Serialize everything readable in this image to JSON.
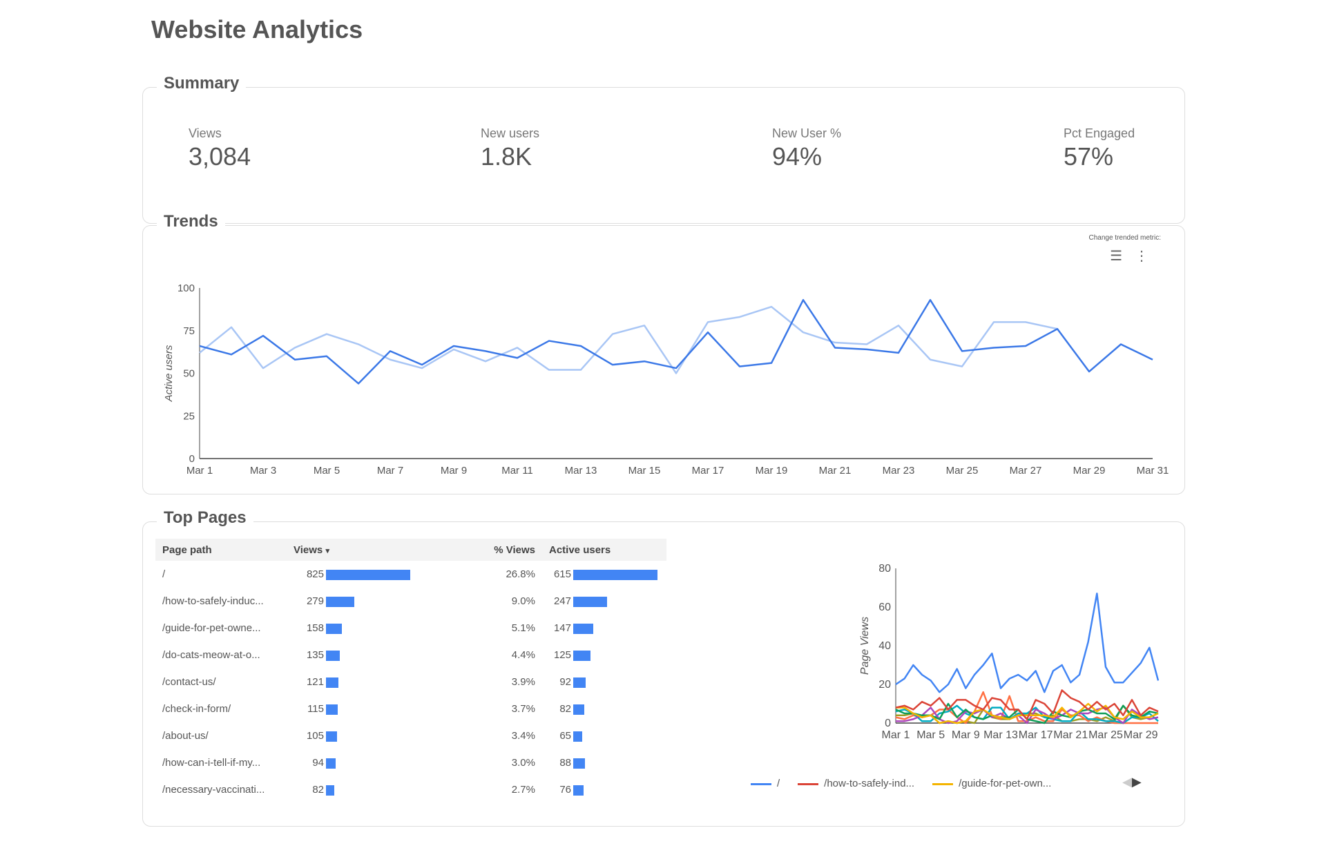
{
  "title": "Website Analytics",
  "summary": {
    "heading": "Summary",
    "kpis": [
      {
        "label": "Views",
        "value": "3,084"
      },
      {
        "label": "New users",
        "value": "1.8K"
      },
      {
        "label": "New User %",
        "value": "94%"
      },
      {
        "label": "Pct Engaged",
        "value": "57%"
      }
    ]
  },
  "trends": {
    "heading": "Trends",
    "control_label": "Change trended metric:",
    "icons": [
      "filter-icon",
      "more-vert-icon"
    ]
  },
  "top_pages": {
    "heading": "Top Pages",
    "columns": [
      "Page path",
      "Views",
      "% Views",
      "Active users"
    ],
    "sort_indicator": "▾",
    "rows": [
      {
        "path": "/",
        "views": 825,
        "pct": "26.8%",
        "users": 615
      },
      {
        "path": "/how-to-safely-induc...",
        "views": 279,
        "pct": "9.0%",
        "users": 247
      },
      {
        "path": "/guide-for-pet-owne...",
        "views": 158,
        "pct": "5.1%",
        "users": 147
      },
      {
        "path": "/do-cats-meow-at-o...",
        "views": 135,
        "pct": "4.4%",
        "users": 125
      },
      {
        "path": "/contact-us/",
        "views": 121,
        "pct": "3.9%",
        "users": 92
      },
      {
        "path": "/check-in-form/",
        "views": 115,
        "pct": "3.7%",
        "users": 82
      },
      {
        "path": "/about-us/",
        "views": 105,
        "pct": "3.4%",
        "users": 65
      },
      {
        "path": "/how-can-i-tell-if-my...",
        "views": 94,
        "pct": "3.0%",
        "users": 88
      },
      {
        "path": "/necessary-vaccinati...",
        "views": 82,
        "pct": "2.7%",
        "users": 76
      }
    ]
  },
  "chart_data": [
    {
      "type": "line",
      "ylabel": "Active users",
      "ylim": [
        0,
        100
      ],
      "yticks": [
        0,
        25,
        50,
        75,
        100
      ],
      "xticks": [
        "Mar 1",
        "Mar 3",
        "Mar 5",
        "Mar 7",
        "Mar 9",
        "Mar 11",
        "Mar 13",
        "Mar 15",
        "Mar 17",
        "Mar 19",
        "Mar 21",
        "Mar 23",
        "Mar 25",
        "Mar 27",
        "Mar 29",
        "Mar 31"
      ],
      "x_days": 31,
      "grid": false,
      "series": [
        {
          "color": "#3b78e7",
          "values": [
            66,
            61,
            72,
            58,
            60,
            44,
            63,
            55,
            66,
            63,
            59,
            69,
            66,
            55,
            57,
            53,
            74,
            54,
            56,
            93,
            65,
            64,
            62,
            93,
            63,
            65,
            66,
            76,
            51,
            67,
            58
          ]
        },
        {
          "color": "#a9c6f5",
          "values": [
            62,
            77,
            53,
            65,
            73,
            67,
            58,
            53,
            64,
            57,
            65,
            52,
            52,
            73,
            78,
            50,
            80,
            83,
            89,
            74,
            68,
            67,
            78,
            58,
            54,
            80,
            80,
            76
          ]
        }
      ]
    },
    {
      "type": "line",
      "ylabel": "Page Views",
      "ylim": [
        0,
        80
      ],
      "yticks": [
        0,
        20,
        40,
        60,
        80
      ],
      "xticks": [
        "Mar 1",
        "Mar 5",
        "Mar 9",
        "Mar 13",
        "Mar 17",
        "Mar 21",
        "Mar 25",
        "Mar 29"
      ],
      "x_days": 31,
      "grid": false,
      "legend": "bottom",
      "series": [
        {
          "name": "/",
          "color": "#4285f4",
          "values": [
            20,
            23,
            30,
            25,
            22,
            16,
            20,
            28,
            18,
            25,
            30,
            36,
            18,
            23,
            25,
            22,
            27,
            16,
            27,
            30,
            21,
            25,
            42,
            67,
            29,
            21,
            21,
            26,
            31,
            39,
            22
          ]
        },
        {
          "name": "/how-to-safely-ind...",
          "color": "#db4437",
          "values": [
            8,
            9,
            7,
            11,
            9,
            13,
            7,
            12,
            12,
            9,
            7,
            13,
            12,
            7,
            7,
            2,
            12,
            10,
            5,
            17,
            13,
            11,
            7,
            11,
            7,
            10,
            4,
            12,
            4,
            8,
            6
          ]
        },
        {
          "name": "/guide-for-pet-own...",
          "color": "#f4b400",
          "values": [
            8,
            8,
            5,
            3,
            4,
            0,
            1,
            0,
            1,
            6,
            7,
            4,
            3,
            2,
            4,
            4,
            4,
            4,
            3,
            8,
            3,
            6,
            10,
            6,
            9,
            3,
            2,
            6,
            3,
            3,
            5
          ]
        },
        {
          "color": "#0f9d58",
          "values": [
            7,
            5,
            5,
            4,
            4,
            2,
            10,
            3,
            7,
            3,
            2,
            4,
            3,
            3,
            7,
            2,
            1,
            0,
            6,
            4,
            3,
            6,
            7,
            5,
            5,
            2,
            9,
            4,
            3,
            6,
            5
          ]
        },
        {
          "color": "#ab47bc",
          "values": [
            1,
            1,
            2,
            4,
            8,
            2,
            0,
            1,
            6,
            5,
            7,
            3,
            5,
            2,
            4,
            0,
            7,
            5,
            2,
            4,
            7,
            5,
            5,
            7,
            8,
            3,
            0,
            7,
            4,
            2,
            3
          ]
        },
        {
          "color": "#00acc1",
          "values": [
            6,
            7,
            5,
            1,
            1,
            5,
            6,
            9,
            5,
            3,
            2,
            8,
            8,
            2,
            5,
            5,
            8,
            3,
            2,
            1,
            1,
            6,
            2,
            2,
            1,
            1,
            0,
            3,
            3,
            5,
            1
          ]
        },
        {
          "color": "#ff7043",
          "values": [
            3,
            2,
            4,
            3,
            4,
            7,
            7,
            3,
            0,
            6,
            16,
            4,
            2,
            14,
            1,
            1,
            3,
            1,
            1,
            7,
            4,
            4,
            1,
            3,
            1,
            0,
            0,
            0,
            0,
            0,
            0
          ]
        },
        {
          "color": "#9e9d24",
          "values": [
            4,
            4,
            5,
            3,
            4,
            0,
            1,
            0,
            1,
            0,
            7,
            3,
            2,
            2,
            4,
            5,
            5,
            3,
            4,
            1,
            1,
            2,
            2,
            1,
            3,
            1,
            9,
            3,
            2,
            3,
            5
          ]
        }
      ]
    }
  ]
}
